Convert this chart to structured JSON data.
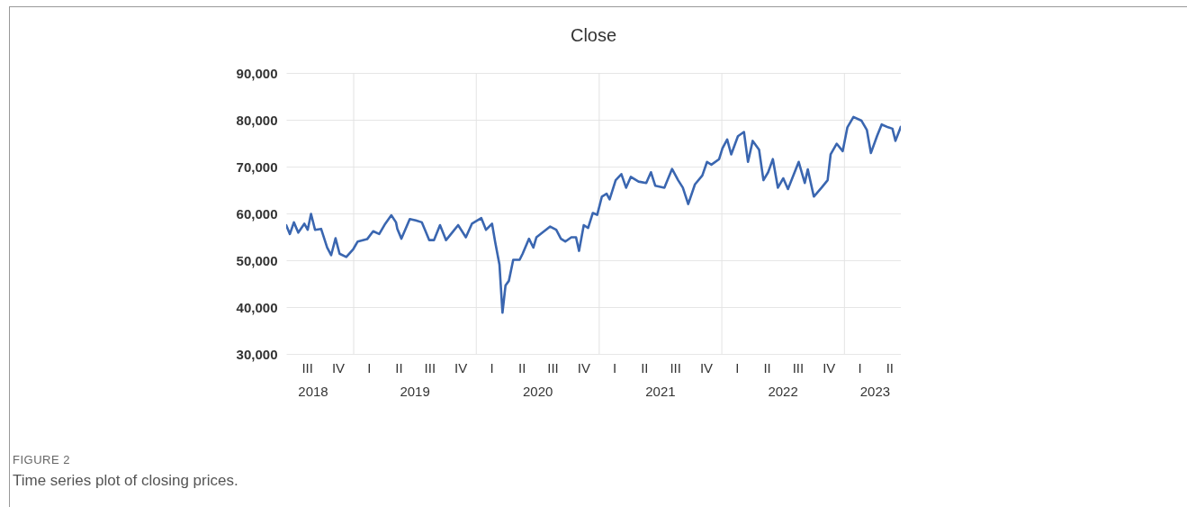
{
  "chart_data": {
    "type": "line",
    "title": "Close",
    "annotations": [
      "III",
      "IV",
      "I",
      "II",
      "III",
      "IV",
      "I",
      "II",
      "III",
      "IV",
      "I",
      "II",
      "III",
      "IV",
      "I",
      "II",
      "III",
      "IV",
      "I",
      "II",
      "FIGURE 2",
      "Time series plot of closing prices."
    ],
    "grid": true,
    "xlim": [
      "2018-06-14",
      "2023-06-18"
    ],
    "ylim": [
      30000,
      90000
    ],
    "yticks": [
      {
        "value": 30000,
        "label": "30,000"
      },
      {
        "value": 40000,
        "label": "40,000"
      },
      {
        "value": 50000,
        "label": "50,000"
      },
      {
        "value": 60000,
        "label": "60,000"
      },
      {
        "value": 70000,
        "label": "70,000"
      },
      {
        "value": 80000,
        "label": "80,000"
      },
      {
        "value": 90000,
        "label": "90,000"
      }
    ],
    "xticks": [
      {
        "value": "2018-09-01",
        "label": "2018"
      },
      {
        "value": "2019-07-01",
        "label": "2019"
      },
      {
        "value": "2020-07-01",
        "label": "2020"
      },
      {
        "value": "2021-07-01",
        "label": "2021"
      },
      {
        "value": "2022-07-01",
        "label": "2022"
      },
      {
        "value": "2023-04-01",
        "label": "2023"
      },
      {
        "value": "2019-01-01",
        "label": null
      },
      {
        "value": "2020-01-01",
        "label": null
      },
      {
        "value": "2021-01-01",
        "label": null
      },
      {
        "value": "2022-01-01",
        "label": null
      },
      {
        "value": "2023-01-01",
        "label": null
      }
    ],
    "x": [
      "2018-06-14",
      "2018-06-25",
      "2018-07-07",
      "2018-07-20",
      "2018-08-07",
      "2018-08-17",
      "2018-08-27",
      "2018-09-08",
      "2018-09-26",
      "2018-10-14",
      "2018-10-26",
      "2018-11-08",
      "2018-11-20",
      "2018-12-10",
      "2018-12-31",
      "2019-01-13",
      "2019-02-10",
      "2019-02-28",
      "2019-03-18",
      "2019-04-05",
      "2019-04-23",
      "2019-05-07",
      "2019-05-11",
      "2019-05-23",
      "2019-06-17",
      "2019-07-05",
      "2019-07-23",
      "2019-08-14",
      "2019-08-28",
      "2019-09-15",
      "2019-10-03",
      "2019-10-21",
      "2019-11-08",
      "2019-12-01",
      "2019-12-19",
      "2020-01-16",
      "2020-01-30",
      "2020-02-17",
      "2020-02-26",
      "2020-03-10",
      "2020-03-19",
      "2020-03-28",
      "2020-04-07",
      "2020-04-20",
      "2020-05-09",
      "2020-05-18",
      "2020-06-06",
      "2020-06-19",
      "2020-06-28",
      "2020-07-21",
      "2020-08-08",
      "2020-08-26",
      "2020-09-09",
      "2020-09-22",
      "2020-10-10",
      "2020-10-24",
      "2020-11-02",
      "2020-11-16",
      "2020-11-29",
      "2020-12-13",
      "2020-12-26",
      "2021-01-09",
      "2021-01-23",
      "2021-02-01",
      "2021-02-19",
      "2021-03-08",
      "2021-03-22",
      "2021-04-05",
      "2021-04-28",
      "2021-05-21",
      "2021-06-04",
      "2021-06-17",
      "2021-07-14",
      "2021-08-06",
      "2021-08-24",
      "2021-09-07",
      "2021-09-23",
      "2021-10-13",
      "2021-11-04",
      "2021-11-18",
      "2021-12-01",
      "2021-12-24",
      "2022-01-03",
      "2022-01-17",
      "2022-01-29",
      "2022-02-18",
      "2022-03-08",
      "2022-03-20",
      "2022-04-03",
      "2022-04-22",
      "2022-05-05",
      "2022-05-19",
      "2022-06-02",
      "2022-06-17",
      "2022-07-03",
      "2022-07-17",
      "2022-08-18",
      "2022-09-05",
      "2022-09-14",
      "2022-10-02",
      "2022-10-25",
      "2022-11-12",
      "2022-11-21",
      "2022-12-09",
      "2022-12-27",
      "2023-01-10",
      "2023-01-28",
      "2023-02-21",
      "2023-03-09",
      "2023-03-21",
      "2023-04-08",
      "2023-04-22",
      "2023-05-11",
      "2023-05-24",
      "2023-06-02",
      "2023-06-18"
    ],
    "series": [
      {
        "color": "#3a66b0",
        "values": [
          57500,
          55600,
          58100,
          55900,
          57800,
          56500,
          59900,
          56500,
          56700,
          52700,
          51100,
          54700,
          51400,
          50700,
          52400,
          54000,
          54500,
          56200,
          55600,
          57800,
          59600,
          58100,
          56700,
          54600,
          58800,
          58500,
          58100,
          54300,
          54300,
          57500,
          54300,
          55900,
          57500,
          54900,
          57800,
          59000,
          56500,
          57800,
          54000,
          49100,
          38800,
          44600,
          45600,
          50100,
          50100,
          51400,
          54600,
          52700,
          54900,
          56200,
          57200,
          56500,
          54600,
          54000,
          54900,
          54900,
          52000,
          57500,
          56900,
          60100,
          59700,
          63600,
          64200,
          63000,
          67100,
          68400,
          65500,
          67800,
          66800,
          66500,
          68800,
          65900,
          65500,
          69500,
          67100,
          65500,
          62000,
          66200,
          68100,
          71000,
          70400,
          71600,
          73900,
          75800,
          72600,
          76500,
          77400,
          71000,
          75500,
          73600,
          67100,
          68800,
          71600,
          65500,
          67500,
          65200,
          71000,
          66500,
          69400,
          63600,
          65500,
          67100,
          72600,
          74900,
          73300,
          78400,
          80600,
          79800,
          77800,
          72900,
          76500,
          79000,
          78400,
          78100,
          75500,
          78500
        ]
      }
    ]
  }
}
